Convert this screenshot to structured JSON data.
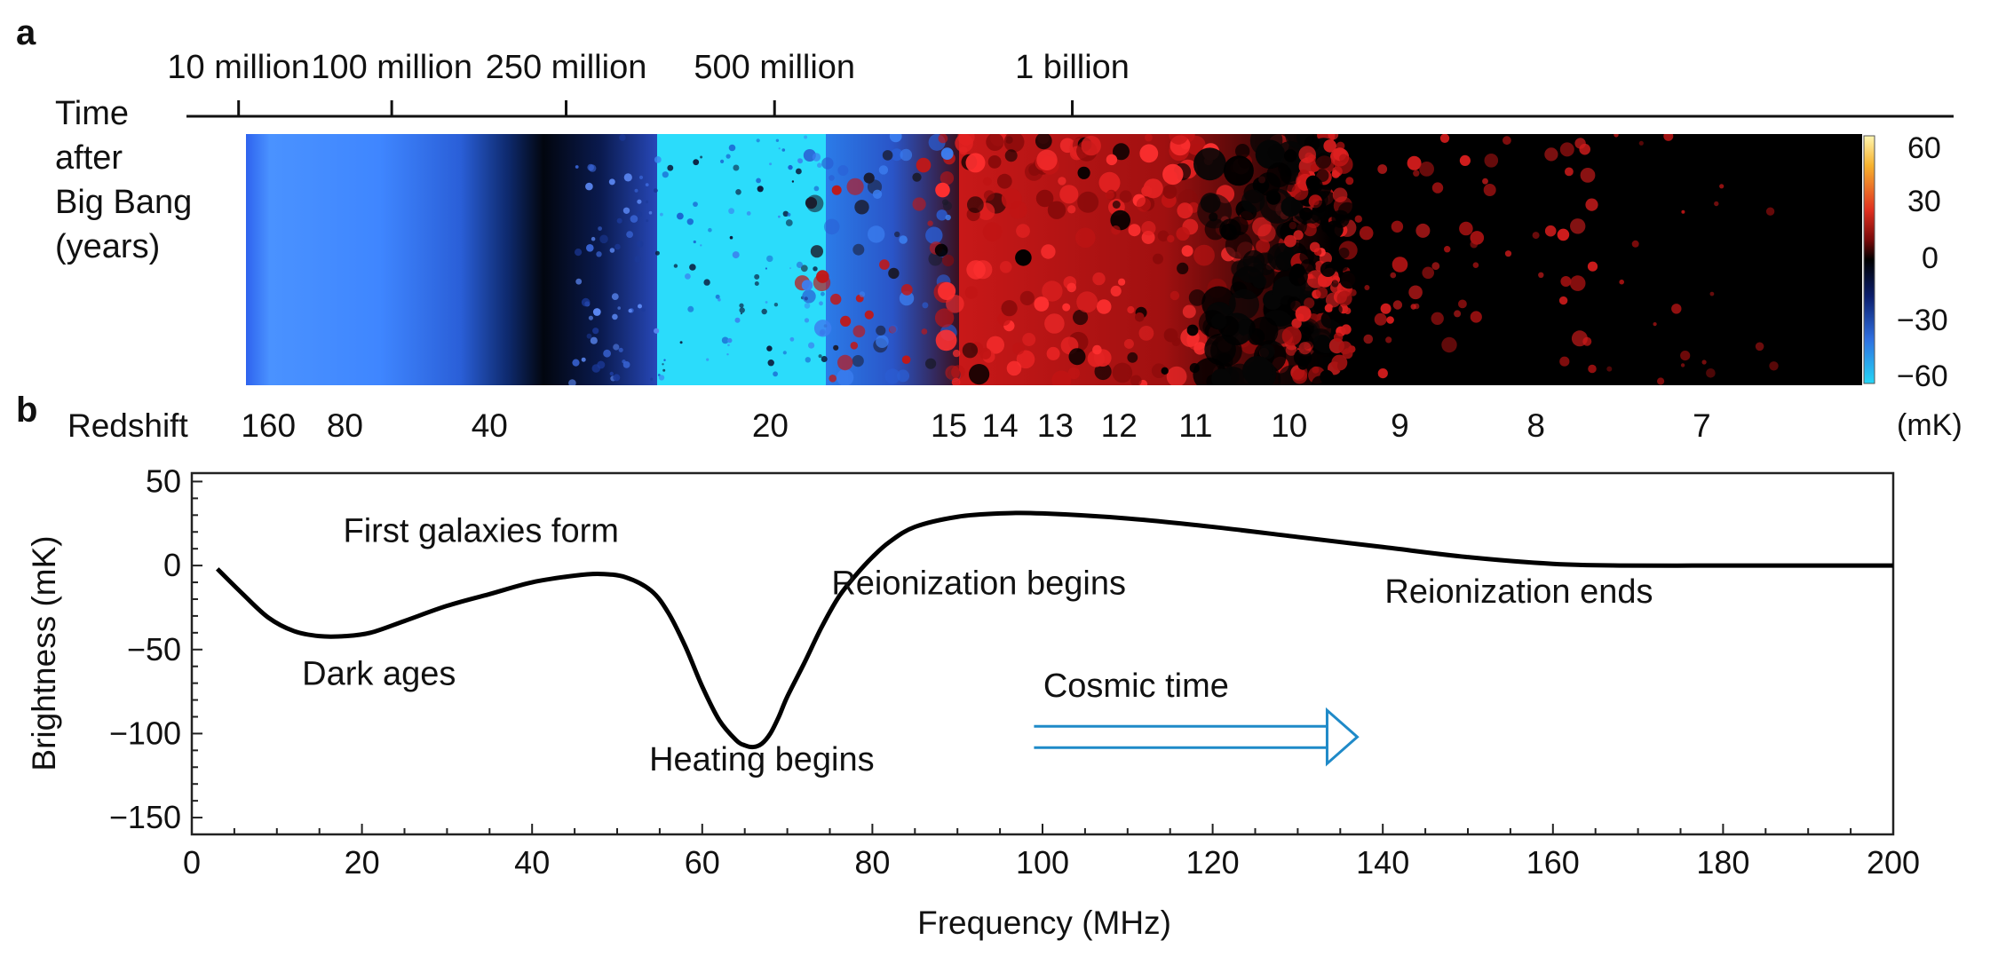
{
  "panel_a": {
    "label": "a",
    "time_axis": {
      "title_lines": [
        "Time",
        "after",
        "Big Bang",
        "(years)"
      ],
      "ticks": [
        {
          "label": "10 million",
          "freq": 5.5
        },
        {
          "label": "100 million",
          "freq": 23.5
        },
        {
          "label": "250 million",
          "freq": 44
        },
        {
          "label": "500 million",
          "freq": 68.5
        },
        {
          "label": "1 billion",
          "freq": 103.5
        }
      ]
    },
    "colorbar": {
      "ticks": [
        "60",
        "30",
        "0",
        "−30",
        "−60"
      ],
      "unit": "(mK)",
      "colors": [
        "#fff6b0",
        "#f6b22e",
        "#e03020",
        "#7a0a0a",
        "#000000",
        "#0c1f6e",
        "#2f6fe0",
        "#24d6f6"
      ]
    },
    "map": {
      "regions": [
        "blue haze",
        "dark band",
        "cyan speckle",
        "red ionization fronts",
        "black ionized"
      ]
    },
    "redshift_axis": {
      "title": "Redshift",
      "ticks": [
        {
          "label": "160",
          "freq": 9
        },
        {
          "label": "80",
          "freq": 18
        },
        {
          "label": "40",
          "freq": 35
        },
        {
          "label": "20",
          "freq": 68
        },
        {
          "label": "15",
          "freq": 89
        },
        {
          "label": "14",
          "freq": 95
        },
        {
          "label": "13",
          "freq": 101.5
        },
        {
          "label": "12",
          "freq": 109
        },
        {
          "label": "11",
          "freq": 118
        },
        {
          "label": "10",
          "freq": 129
        },
        {
          "label": "9",
          "freq": 142
        },
        {
          "label": "8",
          "freq": 158
        },
        {
          "label": "7",
          "freq": 177.5
        }
      ]
    }
  },
  "chart_data": {
    "type": "line",
    "panel_label": "b",
    "xlabel": "Frequency (MHz)",
    "ylabel": "Brightness (mK)",
    "xlim": [
      0,
      200
    ],
    "ylim": [
      -160,
      55
    ],
    "xticks": [
      0,
      20,
      40,
      60,
      80,
      100,
      120,
      140,
      160,
      180,
      200
    ],
    "yticks": [
      50,
      0,
      -50,
      -100,
      -150
    ],
    "ytick_labels": [
      "50",
      "0",
      "−50",
      "−100",
      "−150"
    ],
    "grid": false,
    "series": [
      {
        "color": "#000000",
        "x": [
          3,
          6,
          9,
          12,
          15,
          18,
          21,
          25,
          30,
          35,
          40,
          45,
          48,
          51,
          54,
          56,
          58,
          60,
          62,
          64,
          65,
          66,
          67,
          68,
          69,
          70,
          72,
          74,
          76,
          78,
          80,
          82,
          85,
          90,
          95,
          100,
          110,
          120,
          130,
          140,
          150,
          160,
          168,
          180,
          190,
          200
        ],
        "y": [
          -2,
          -17,
          -31,
          -39,
          -42,
          -42,
          -40,
          -33,
          -24,
          -17,
          -10,
          -6,
          -5,
          -7,
          -15,
          -28,
          -48,
          -72,
          -92,
          -104,
          -107,
          -108,
          -106,
          -100,
          -90,
          -78,
          -58,
          -37,
          -19,
          -6,
          5,
          14,
          23,
          29,
          31,
          31,
          28,
          23,
          17,
          11,
          5,
          1,
          0,
          0,
          0,
          0
        ]
      }
    ],
    "annotations": [
      {
        "text": "First galaxies form",
        "x": 34,
        "y": 14
      },
      {
        "text": "Dark ages",
        "x": 22,
        "y": -71
      },
      {
        "text": "Heating begins",
        "x": 67,
        "y": -122
      },
      {
        "text": "Reionization begins",
        "x": 92.5,
        "y": -17
      },
      {
        "text": "Reionization ends",
        "x": 156,
        "y": -22
      },
      {
        "text": "Cosmic time",
        "x": 111,
        "y": -78
      }
    ],
    "arrow": {
      "from": 99,
      "to": 137,
      "y": -102,
      "color": "#1f8ac8"
    }
  }
}
